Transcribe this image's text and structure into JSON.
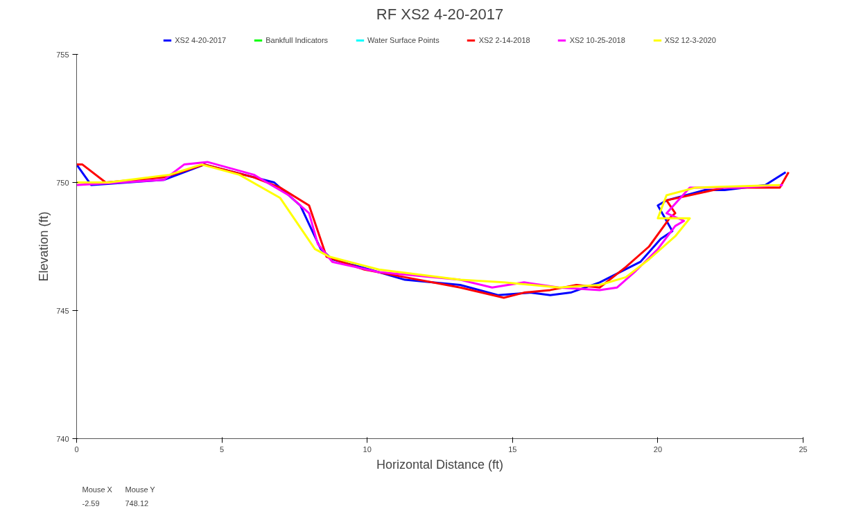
{
  "chart_data": {
    "type": "line",
    "title": "RF XS2 4-20-2017",
    "xlabel": "Horizontal Distance (ft)",
    "ylabel": "Elevation (ft)",
    "xlim": [
      0,
      25
    ],
    "ylim": [
      740,
      755
    ],
    "xticks": [
      0,
      5,
      10,
      15,
      20,
      25
    ],
    "yticks": [
      740,
      745,
      750,
      755
    ],
    "grid": false,
    "legend": "top",
    "line_style": "solid",
    "series": [
      {
        "name": "XS2 4-20-2017",
        "color": "#0000ff",
        "x": [
          0,
          0.5,
          3.0,
          4.4,
          6.8,
          7.7,
          8.4,
          8.8,
          10.4,
          11.3,
          13.2,
          14.5,
          15.6,
          16.3,
          17.0,
          18.0,
          19.4,
          20.1,
          20.5,
          20.0,
          20.3,
          21.6,
          22.3,
          23.7,
          24.4
        ],
        "values": [
          750.7,
          749.9,
          750.1,
          750.7,
          750.0,
          749.1,
          747.4,
          747.0,
          746.5,
          746.2,
          746.0,
          745.6,
          745.7,
          745.6,
          745.7,
          746.1,
          746.9,
          747.8,
          748.1,
          749.1,
          749.3,
          749.7,
          749.7,
          749.9,
          750.4
        ]
      },
      {
        "name": "Bankfull Indicators",
        "color": "#00ff00"
      },
      {
        "name": "Water Surface Points",
        "color": "#00ffff"
      },
      {
        "name": "XS2 2-14-2018",
        "color": "#ff0000",
        "x": [
          0,
          0.2,
          1.0,
          3.0,
          4.4,
          6.1,
          7.0,
          8.0,
          8.6,
          9.9,
          11.3,
          13.2,
          14.7,
          15.4,
          16.3,
          17.2,
          18.0,
          18.9,
          19.7,
          20.4,
          20.6,
          20.3,
          22.3,
          24.2,
          24.5
        ],
        "values": [
          750.7,
          750.7,
          750.0,
          750.2,
          750.7,
          750.2,
          749.8,
          749.1,
          747.1,
          746.6,
          746.3,
          745.9,
          745.5,
          745.7,
          745.8,
          746.0,
          745.9,
          746.7,
          747.5,
          748.6,
          748.8,
          749.3,
          749.8,
          749.8,
          750.4
        ]
      },
      {
        "name": "XS2 10-25-2018",
        "color": "#ff00ff",
        "x": [
          0,
          3.0,
          3.7,
          4.5,
          6.1,
          7.3,
          8.0,
          8.3,
          8.8,
          10.4,
          13.2,
          14.3,
          15.4,
          16.6,
          18.0,
          18.6,
          19.2,
          20.0,
          20.6,
          20.9,
          20.3,
          21.1,
          22.8,
          24.3
        ],
        "values": [
          749.9,
          750.1,
          750.7,
          750.8,
          750.3,
          749.5,
          748.8,
          747.6,
          746.9,
          746.5,
          746.2,
          745.9,
          746.1,
          745.9,
          745.8,
          745.9,
          746.5,
          747.4,
          748.3,
          748.5,
          748.8,
          749.8,
          749.8,
          749.9
        ]
      },
      {
        "name": "XS2 12-3-2020",
        "color": "#ffff00",
        "x": [
          0,
          1.1,
          3.2,
          4.3,
          5.6,
          7.0,
          8.2,
          8.7,
          10.4,
          13.2,
          14.7,
          16.6,
          18.0,
          18.9,
          19.7,
          20.6,
          21.1,
          20.0,
          20.3,
          21.3,
          24.2
        ],
        "values": [
          750.0,
          750.0,
          750.3,
          750.7,
          750.3,
          749.4,
          747.4,
          747.1,
          746.6,
          746.2,
          746.1,
          745.9,
          746.0,
          746.3,
          747.0,
          747.9,
          748.6,
          748.6,
          749.5,
          749.8,
          749.9
        ]
      }
    ],
    "annotations": [
      "Mouse X",
      "Mouse Y",
      "-2.59",
      "748.12"
    ]
  }
}
